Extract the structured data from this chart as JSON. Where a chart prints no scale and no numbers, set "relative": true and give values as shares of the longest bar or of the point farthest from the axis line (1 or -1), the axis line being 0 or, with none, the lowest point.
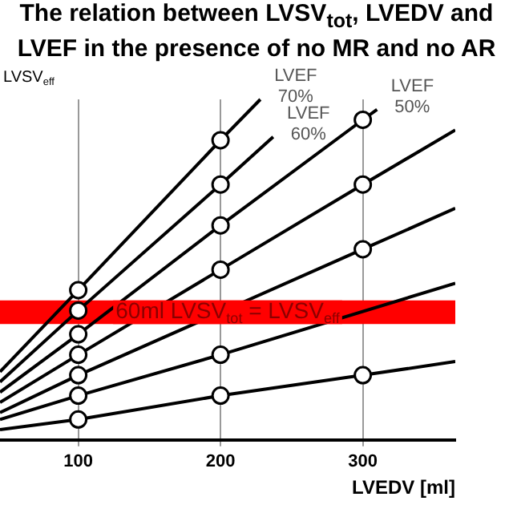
{
  "chart_data": {
    "type": "line",
    "title": "The relation between LVSV$_{tot}$, LVEDV and LVEF in the presence of no MR and no AR",
    "ylabel": "LVSV$_{eff}$",
    "xlabel": "LVEDV [ml]",
    "relative": true,
    "xlim": [
      45,
      365
    ],
    "xticks": [
      100,
      200,
      300
    ],
    "grid": "x",
    "legend": false,
    "marker": "circle",
    "series": [
      {
        "name": "LVEF 70%",
        "color": "#000000",
        "x": [
          45,
          100,
          200,
          228
        ],
        "values": [
          0.2,
          0.44,
          0.88,
          1
        ]
      },
      {
        "name": "LVEF 60%",
        "color": "#000000",
        "x": [
          45,
          100,
          200,
          237
        ],
        "values": [
          0.17,
          0.38,
          0.75,
          0.89
        ]
      },
      {
        "name": "LVEF 50%",
        "color": "#000000",
        "x": [
          45,
          100,
          200,
          300,
          310
        ],
        "values": [
          0.14,
          0.31,
          0.63,
          0.94,
          0.97
        ]
      },
      {
        "color": "#000000",
        "x": [
          45,
          100,
          200,
          300,
          365
        ],
        "values": [
          0.11,
          0.25,
          0.5,
          0.75,
          0.91
        ]
      },
      {
        "color": "#000000",
        "x": [
          45,
          100,
          300,
          365
        ],
        "values": [
          0.08,
          0.19,
          0.56,
          0.68
        ]
      },
      {
        "color": "#000000",
        "x": [
          45,
          100,
          200,
          365
        ],
        "values": [
          0.06,
          0.13,
          0.25,
          0.46
        ]
      },
      {
        "color": "#000000",
        "x": [
          45,
          100,
          200,
          300,
          365
        ],
        "values": [
          0.03,
          0.06,
          0.13,
          0.19,
          0.23
        ]
      }
    ],
    "bands": [
      {
        "axis": "y",
        "from": 0.34,
        "to": 0.41,
        "label": "60ml LVSV$_{tot}$ = LVSV$_{eff}$",
        "color": "#ff0000"
      }
    ]
  }
}
